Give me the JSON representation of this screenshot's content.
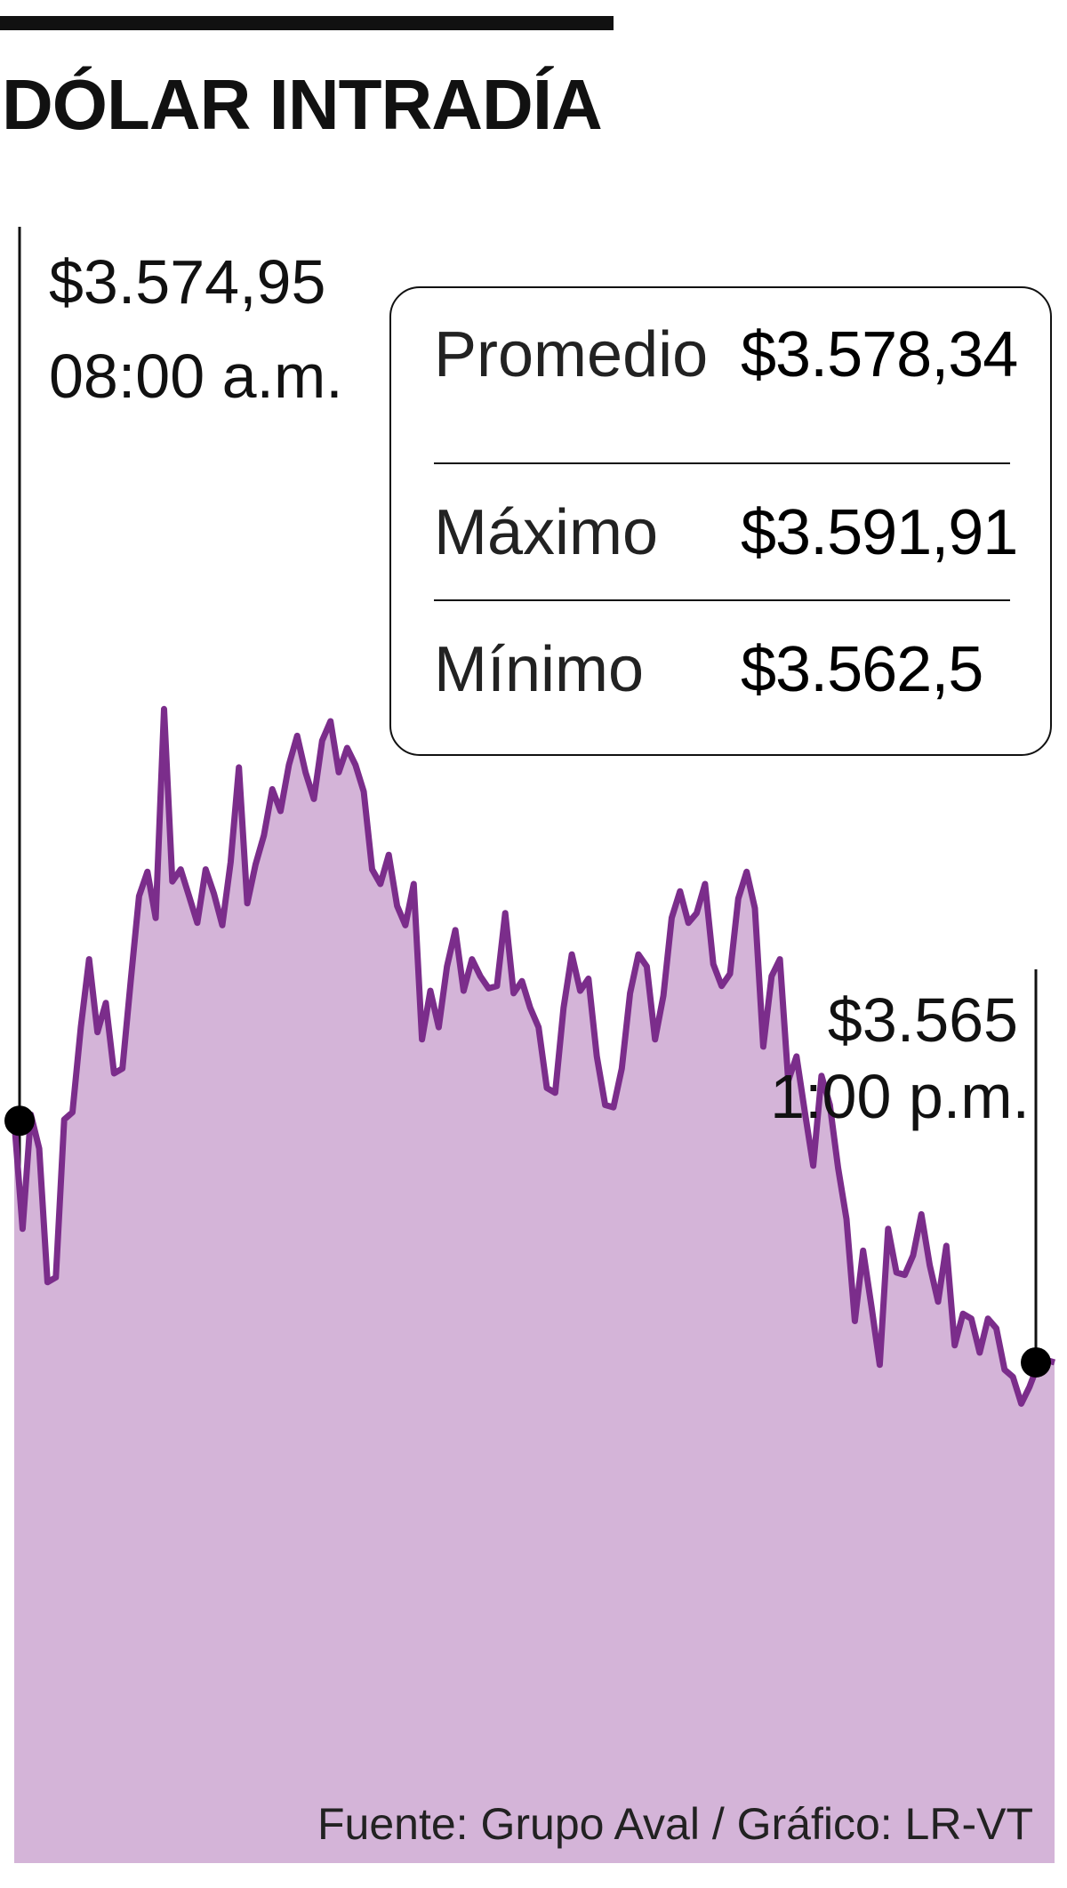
{
  "header": {
    "title": "DÓLAR INTRADÍA"
  },
  "annotations": {
    "start_value": "$3.574,95",
    "start_time": "08:00 a.m.",
    "end_value": "$3.565",
    "end_time": "1:00 p.m."
  },
  "stats": [
    {
      "label": "Promedio",
      "value": "$3.578,34"
    },
    {
      "label": "Máximo",
      "value": "$3.591,91"
    },
    {
      "label": "Mínimo",
      "value": "$3.562,5"
    }
  ],
  "footer": {
    "source": "Fuente: Grupo Aval  / Gráfico: LR-VT"
  },
  "colors": {
    "line": "#7b2d8b",
    "area": "#d4b4d8",
    "marker": "#000000"
  },
  "chart_data": {
    "type": "area",
    "title": "DÓLAR INTRADÍA",
    "xlabel": "",
    "ylabel": "",
    "x_start": "08:00 a.m.",
    "x_end": "1:00 p.m.",
    "grid": false,
    "legend": "none",
    "ylim": [
      3558,
      3594
    ],
    "series": [
      {
        "values": [
          3574.95,
          3570.5,
          3575.2,
          3573.8,
          3568.3,
          3568.5,
          3575.0,
          3575.3,
          3578.8,
          3581.6,
          3578.6,
          3579.8,
          3576.9,
          3577.1,
          3580.7,
          3584.2,
          3585.2,
          3583.3,
          3591.9,
          3584.8,
          3585.3,
          3584.2,
          3583.1,
          3585.3,
          3584.3,
          3583.0,
          3585.6,
          3589.5,
          3583.9,
          3585.5,
          3586.7,
          3588.6,
          3587.7,
          3589.6,
          3590.8,
          3589.3,
          3588.2,
          3590.6,
          3591.4,
          3589.3,
          3590.3,
          3589.6,
          3588.5,
          3585.3,
          3584.7,
          3585.9,
          3583.8,
          3583.0,
          3584.7,
          3578.3,
          3580.3,
          3578.8,
          3581.3,
          3582.8,
          3580.3,
          3581.6,
          3580.9,
          3580.4,
          3580.5,
          3583.5,
          3580.2,
          3580.7,
          3579.6,
          3578.8,
          3576.3,
          3576.1,
          3579.6,
          3581.8,
          3580.3,
          3580.8,
          3577.6,
          3575.6,
          3575.5,
          3577.1,
          3580.2,
          3581.8,
          3581.3,
          3578.3,
          3580.1,
          3583.3,
          3584.4,
          3583.1,
          3583.5,
          3584.7,
          3581.4,
          3580.5,
          3581.0,
          3584.1,
          3585.2,
          3583.7,
          3578.0,
          3580.9,
          3581.6,
          3576.6,
          3577.6,
          3575.3,
          3573.1,
          3576.8,
          3575.6,
          3573.0,
          3570.9,
          3566.7,
          3569.6,
          3567.3,
          3564.9,
          3570.5,
          3568.7,
          3568.6,
          3569.4,
          3571.1,
          3569.0,
          3567.5,
          3569.8,
          3565.7,
          3567.0,
          3566.8,
          3565.4,
          3566.8,
          3566.4,
          3564.7,
          3564.4,
          3563.3,
          3564.0,
          3564.9,
          3565.1,
          3565.0
        ]
      }
    ],
    "annotations": [
      {
        "x": "08:00 a.m.",
        "y": 3574.95,
        "label": "$3.574,95"
      },
      {
        "x": "1:00 p.m.",
        "y": 3565,
        "label": "$3.565"
      }
    ],
    "summary": {
      "Promedio": 3578.34,
      "Máximo": 3591.91,
      "Mínimo": 3562.5
    }
  }
}
